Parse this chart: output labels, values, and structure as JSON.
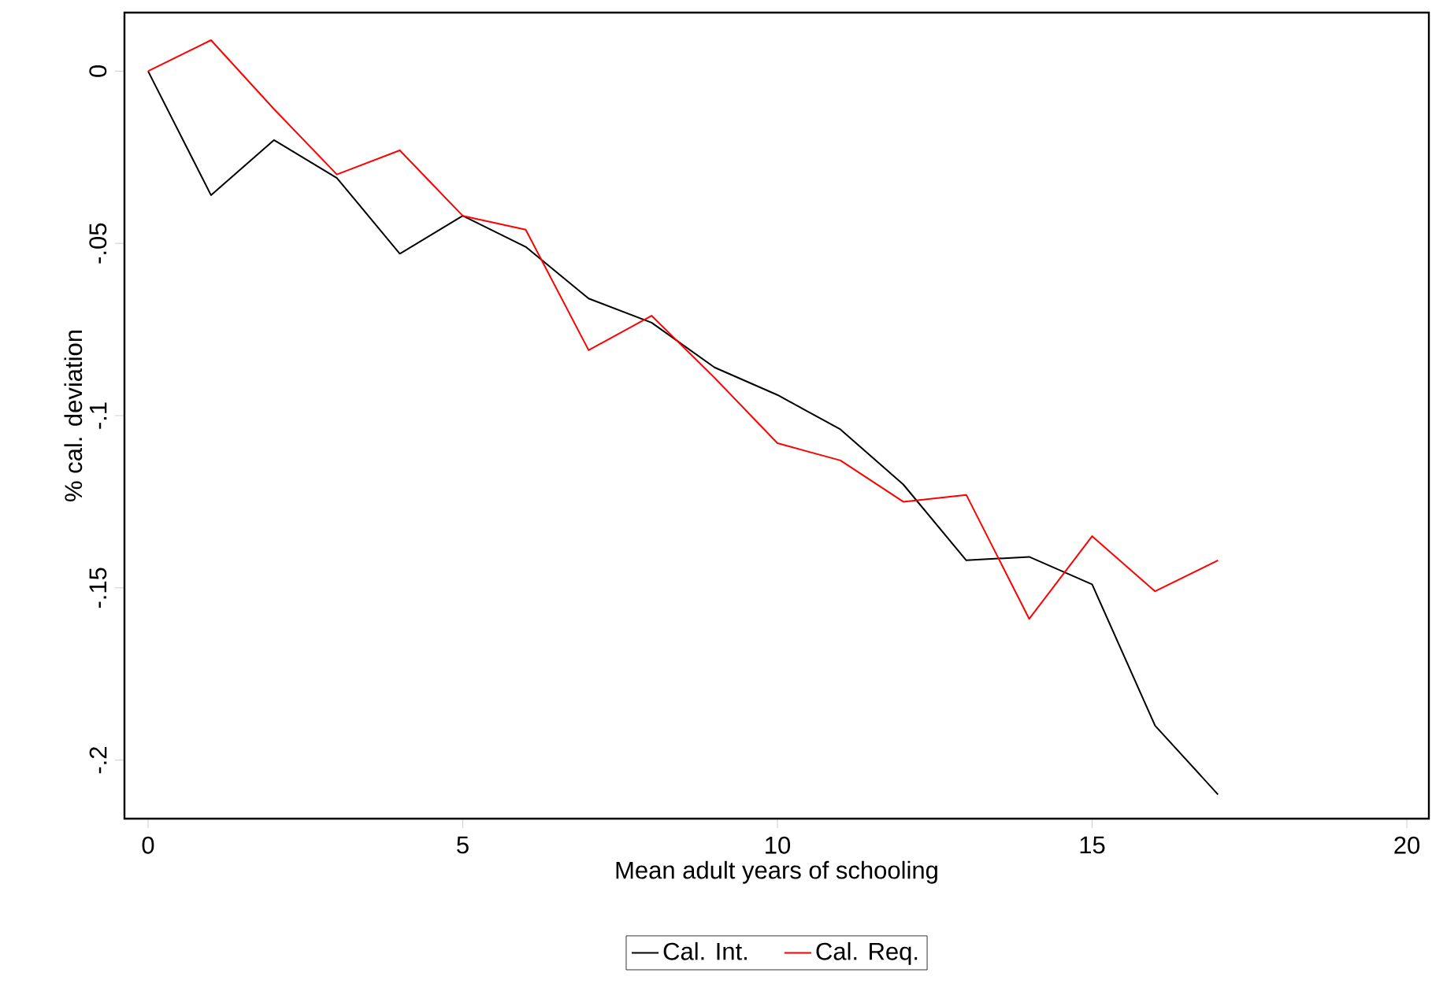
{
  "chart_data": {
    "type": "line",
    "xlabel": "Mean adult years of schooling",
    "ylabel": "% cal. deviation",
    "x": [
      0,
      1,
      2,
      3,
      4,
      5,
      6,
      7,
      8,
      9,
      10,
      11,
      12,
      13,
      14,
      15,
      16,
      17
    ],
    "series": [
      {
        "name": "Cal. Int.",
        "color": "#000000",
        "values": [
          0,
          -0.036,
          -0.02,
          -0.031,
          -0.053,
          -0.042,
          -0.051,
          -0.066,
          -0.073,
          -0.086,
          -0.094,
          -0.104,
          -0.12,
          -0.142,
          -0.141,
          -0.149,
          -0.19,
          -0.21
        ]
      },
      {
        "name": "Cal. Req.",
        "color": "#ff0000",
        "values": [
          0,
          0.009,
          -0.011,
          -0.03,
          -0.023,
          -0.042,
          -0.046,
          -0.081,
          -0.071,
          -0.089,
          -0.108,
          -0.113,
          -0.125,
          -0.123,
          -0.159,
          -0.135,
          -0.151,
          -0.142
        ]
      }
    ],
    "xlim": [
      -0.375,
      20.35
    ],
    "ylim": [
      -0.217,
      0.017
    ],
    "xticks": [
      0,
      5,
      10,
      15,
      20
    ],
    "yticks": [
      {
        "value": 0,
        "label": "0"
      },
      {
        "value": -0.05,
        "label": "-.05"
      },
      {
        "value": -0.1,
        "label": "-.1"
      },
      {
        "value": -0.15,
        "label": "-.15"
      },
      {
        "value": -0.2,
        "label": "-.2"
      }
    ],
    "legend": "bottom",
    "grid": false,
    "marker": "none",
    "line_style": "solid"
  }
}
